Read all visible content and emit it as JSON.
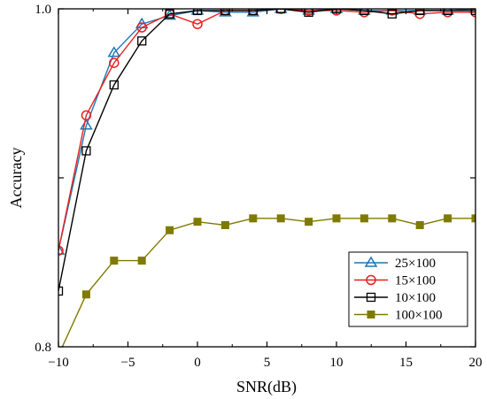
{
  "chart_data": {
    "type": "line",
    "xlabel": "SNR(dB)",
    "ylabel": "Accuracy",
    "xlim": [
      -10,
      20
    ],
    "ylim": [
      0.8,
      1.0
    ],
    "x_ticks": [
      "−10",
      "−5",
      "0",
      "5",
      "10",
      "15",
      "20"
    ],
    "x_tick_values": [
      -10,
      -5,
      0,
      5,
      10,
      15,
      20
    ],
    "y_ticks": [
      "0.8",
      "1.0"
    ],
    "y_tick_values": [
      0.8,
      1.0
    ],
    "y_minor_tick_values": [
      0.9
    ],
    "grid": false,
    "legend_position": "bottom-right",
    "x": [
      -10,
      -8,
      -6,
      -4,
      -2,
      0,
      2,
      4,
      6,
      8,
      10,
      12,
      14,
      16,
      18,
      20
    ],
    "series": [
      {
        "name": "25×100",
        "color": "#1f77b4",
        "marker": "triangle",
        "values": [
          0.857,
          0.931,
          0.974,
          0.991,
          0.996,
          0.999,
          0.998,
          0.998,
          1.0,
          0.999,
          1.0,
          0.999,
          0.999,
          0.999,
          0.999,
          1.0
        ]
      },
      {
        "name": "15×100",
        "color": "#e8211e",
        "marker": "circle",
        "values": [
          0.857,
          0.937,
          0.968,
          0.989,
          0.997,
          0.991,
          0.999,
          0.999,
          1.0,
          0.999,
          0.999,
          0.998,
          0.999,
          0.997,
          0.998,
          0.998
        ]
      },
      {
        "name": "10×100",
        "color": "#000000",
        "marker": "square",
        "values": [
          0.833,
          0.916,
          0.955,
          0.981,
          0.997,
          0.999,
          0.999,
          0.999,
          1.0,
          0.998,
          1.0,
          0.999,
          0.997,
          0.999,
          0.999,
          0.999
        ]
      },
      {
        "name": "100×100",
        "color": "#7f7a00",
        "marker": "square-filled",
        "values": [
          0.795,
          0.831,
          0.851,
          0.851,
          0.869,
          0.874,
          0.872,
          0.876,
          0.876,
          0.874,
          0.876,
          0.876,
          0.876,
          0.872,
          0.876,
          0.876
        ]
      }
    ]
  }
}
